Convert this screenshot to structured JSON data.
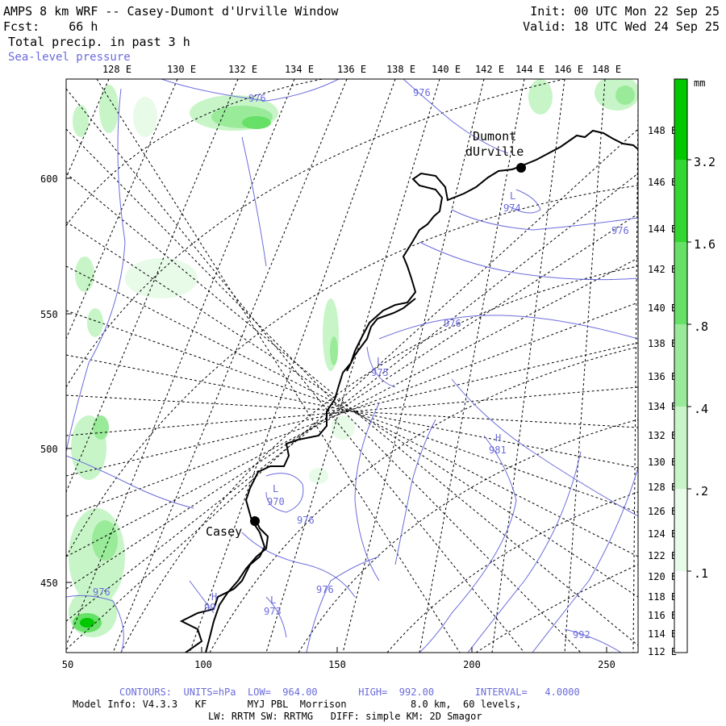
{
  "header": {
    "title": "AMPS 8 km WRF -- Casey-Dumont d'Urville Window",
    "fcst": "Fcst:    66 h",
    "field": "Total precip. in past 3 h",
    "overlay": "Sea-level pressure",
    "init": "Init: 00 UTC Mon 22 Sep 25",
    "valid": "Valid: 18 UTC Wed 24 Sep 25"
  },
  "top_lon_labels": [
    "128 E",
    "130 E",
    "132 E",
    "134 E",
    "136 E",
    "138 E",
    "140 E",
    "142 E",
    "144 E",
    "146 E",
    "148 E"
  ],
  "right_lon_labels": [
    "148 E",
    "146 E",
    "144 E",
    "142 E",
    "140 E",
    "138 E",
    "136 E",
    "134 E",
    "132 E",
    "130 E",
    "128 E",
    "126 E",
    "124 E",
    "122 E",
    "120 E",
    "118 E",
    "116 E",
    "114 E",
    "112 E"
  ],
  "y_ticks": [
    "600",
    "550",
    "500",
    "450"
  ],
  "x_ticks": [
    "50",
    "100",
    "150",
    "200",
    "250"
  ],
  "stations": [
    {
      "name_line1": "Dumont",
      "name_line2": "dUrville"
    },
    {
      "name_line1": "Casey",
      "name_line2": ""
    }
  ],
  "pressure_labels": [
    {
      "text": "976"
    },
    {
      "text": "976"
    },
    {
      "text": "974"
    },
    {
      "text": "976"
    },
    {
      "text": "976"
    },
    {
      "text": "975"
    },
    {
      "text": "981"
    },
    {
      "text": "970"
    },
    {
      "text": "976"
    },
    {
      "text": "976"
    },
    {
      "text": "973"
    },
    {
      "text": "976"
    },
    {
      "text": "992"
    },
    {
      "text": "99"
    }
  ],
  "centers": [
    {
      "text": "L"
    },
    {
      "text": "L"
    },
    {
      "text": "H"
    },
    {
      "text": "L"
    },
    {
      "text": "L"
    },
    {
      "text": "H"
    }
  ],
  "colorbar": {
    "unit": "mm",
    "labels": [
      "3.2",
      "1.6",
      ".8",
      ".4",
      ".2",
      ".1"
    ],
    "colors": [
      "#00c800",
      "#33d633",
      "#66e066",
      "#99ea99",
      "#c8f5c8",
      "#e8fbe8",
      "#ffffff"
    ]
  },
  "footer": {
    "contours": "CONTOURS:  UNITS=hPa  LOW=  964.00       HIGH=  992.00       INTERVAL=   4.0000",
    "model_line": "Model Info: V4.3.3   KF       MYJ PBL  Morrison           8.0 km,  60 levels,",
    "physics_line": "LW: RRTM SW: RRTMG   DIFF: simple KM: 2D Smagor"
  }
}
